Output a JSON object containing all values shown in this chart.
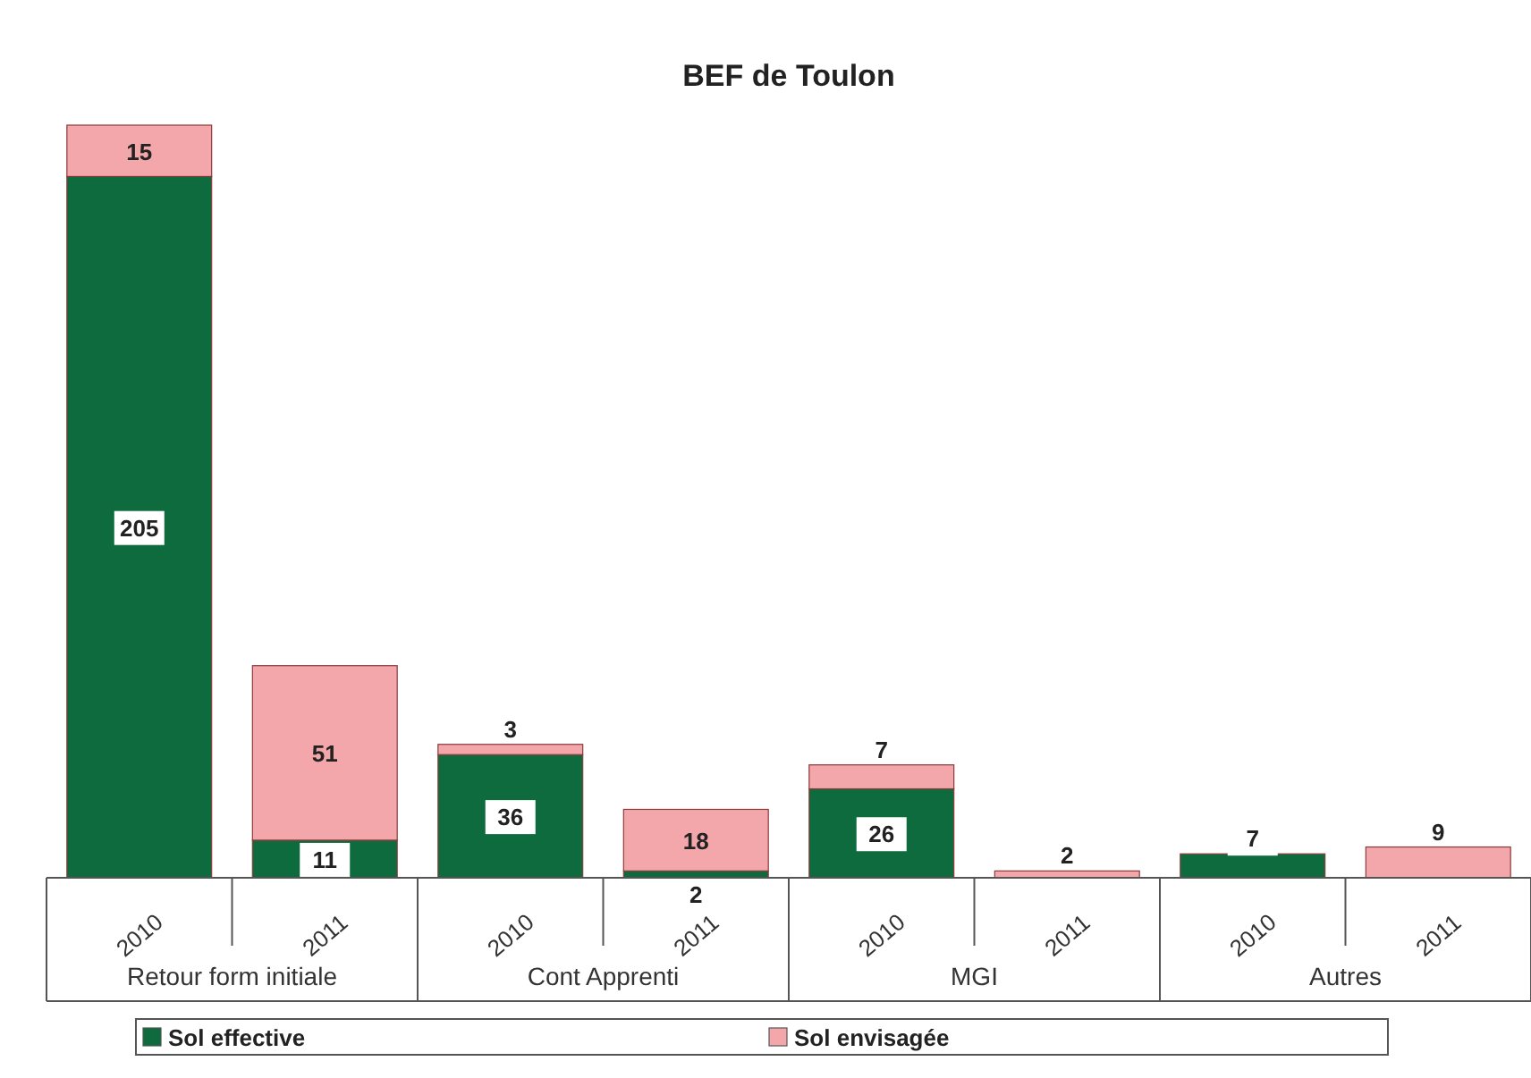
{
  "chart_data": {
    "type": "bar",
    "title": "BEF de Toulon",
    "stacked": true,
    "data_labels": true,
    "legend": "bottom",
    "categories": [
      "2010",
      "2011",
      "2010",
      "2011",
      "2010",
      "2011",
      "2010",
      "2011"
    ],
    "annotations": [
      "Retour form initiale",
      "Cont Apprenti",
      "MGI",
      "Autres"
    ],
    "series": [
      {
        "name": "Sol effective",
        "color": "#0e6b3d",
        "values": [
          205,
          11,
          36,
          2,
          26,
          null,
          7,
          null
        ]
      },
      {
        "name": "Sol envisagée",
        "color": "#f4a7ab",
        "values": [
          15,
          51,
          3,
          18,
          7,
          2,
          null,
          9
        ]
      }
    ]
  }
}
